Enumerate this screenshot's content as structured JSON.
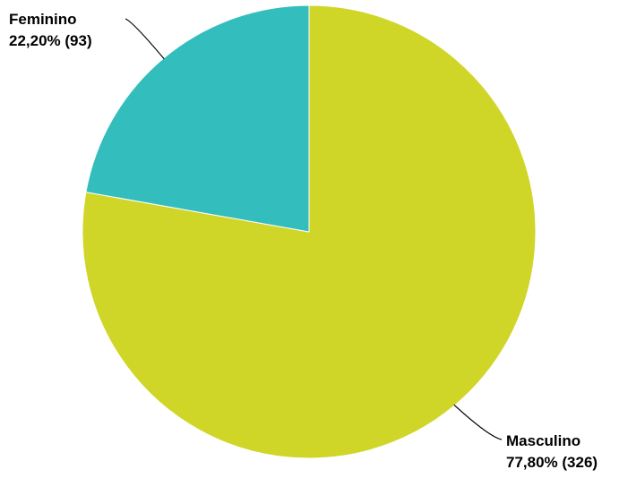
{
  "chart_data": {
    "type": "pie",
    "title": "",
    "slices": [
      {
        "name": "Masculino",
        "value": 326,
        "percent_label": "77,80% (326)",
        "color": "#cfd628"
      },
      {
        "name": "Feminino",
        "value": 93,
        "percent_label": "22,20% (93)",
        "color": "#33bdbd"
      }
    ],
    "start_angle_deg": 0,
    "direction": "clockwise"
  }
}
